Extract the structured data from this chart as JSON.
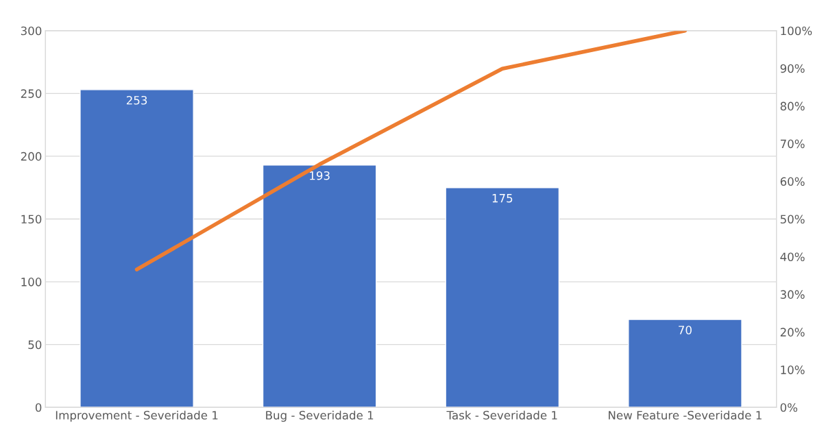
{
  "chart_data": {
    "type": "bar",
    "categories": [
      "Improvement - Severidade 1",
      "Bug - Severidade 1",
      "Task - Severidade 1",
      "New Feature -Severidade 1"
    ],
    "series": [
      {
        "color": "#4472c4",
        "values": [
          253,
          193,
          175,
          70
        ],
        "value_labels": [
          "253",
          "193",
          "175",
          "70"
        ]
      },
      {
        "type": "line",
        "axis": "y2",
        "color": "#ed7d31",
        "values": [
          36.6,
          64.5,
          89.9,
          100
        ]
      }
    ],
    "ylim": [
      0,
      300
    ],
    "yticks": [
      0,
      50,
      100,
      150,
      200,
      250,
      300
    ],
    "y2lim": [
      0,
      100
    ],
    "y2ticks": [
      {
        "value": 0,
        "label": "0%"
      },
      {
        "value": 10,
        "label": "10%"
      },
      {
        "value": 20,
        "label": "20%"
      },
      {
        "value": 30,
        "label": "30%"
      },
      {
        "value": 40,
        "label": "40%"
      },
      {
        "value": 50,
        "label": "50%"
      },
      {
        "value": 60,
        "label": "60%"
      },
      {
        "value": 70,
        "label": "70%"
      },
      {
        "value": 80,
        "label": "80%"
      },
      {
        "value": 90,
        "label": "90%"
      },
      {
        "value": 100,
        "label": "100%"
      }
    ],
    "grid": "y",
    "line_style": "solid"
  }
}
